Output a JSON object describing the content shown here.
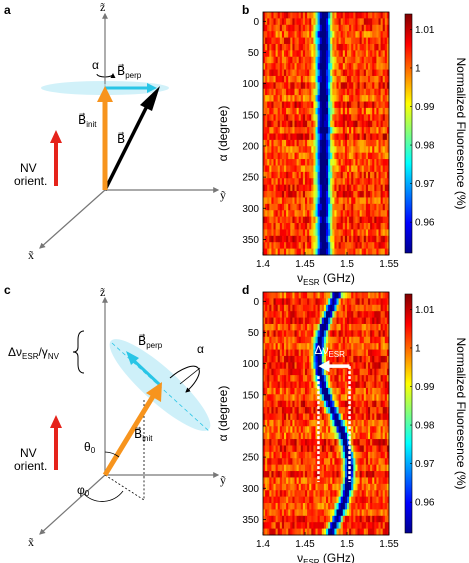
{
  "panels": {
    "a": {
      "label": "a",
      "axis_z": "z̃",
      "axis_y": "ỹ",
      "axis_x": "x̃",
      "alpha": "α",
      "B_perp": "B⃗",
      "B_perp_sub": "perp",
      "B_init": "B⃗",
      "B_init_sub": "init",
      "B": "B⃗",
      "nv_line1": "NV",
      "nv_line2": "orient."
    },
    "c": {
      "label": "c",
      "axis_z": "z̃",
      "axis_y": "ỹ",
      "axis_x": "x̃",
      "alpha": "α",
      "B_perp": "B⃗",
      "B_perp_sub": "perp",
      "B_init": "B⃗",
      "B_init_sub": "init",
      "delta_label": "Δν",
      "delta_sub": "ESR",
      "delta_gamma": "/γ",
      "delta_gamma_sub": "NV",
      "theta": "θ",
      "theta_sub": "0",
      "phi": "φ",
      "phi_sub": "0",
      "nv_line1": "NV",
      "nv_line2": "orient."
    }
  },
  "colors": {
    "orange": "#F7941D",
    "cyan": "#29C5E6",
    "cyan_light": "#BDEBF7",
    "red_nv": "#E5231B",
    "black": "#000000"
  },
  "chart_data": [
    {
      "type": "heatmap",
      "panel_label": "b",
      "xlabel": "ν",
      "xlabel_sub": "ESR",
      "xlabel_unit": " (GHz)",
      "ylabel": "α (degree)",
      "x_ticks": [
        "1.4",
        "1.45",
        "1.5",
        "1.55"
      ],
      "x_tick_values": [
        1.4,
        1.45,
        1.5,
        1.55
      ],
      "y_ticks": [
        "0",
        "50",
        "100",
        "150",
        "200",
        "250",
        "300",
        "350"
      ],
      "y_tick_values": [
        0,
        50,
        100,
        150,
        200,
        250,
        300,
        350
      ],
      "xlim": [
        1.4,
        1.55
      ],
      "ylim": [
        -15,
        375
      ],
      "dip_center_ghz": 1.472,
      "dip_width_ghz": 0.0085,
      "dip_variation": "constant",
      "colorbar_label": "Normalized Fluoresence (%)",
      "colorbar_ticks": [
        "1.01",
        "1",
        "0.99",
        "0.98",
        "0.97",
        "0.96"
      ],
      "colorbar_tick_values": [
        1.01,
        1.0,
        0.99,
        0.98,
        0.97,
        0.96
      ],
      "colorbar_range": [
        0.952,
        1.014
      ],
      "colormap": "jet"
    },
    {
      "type": "heatmap",
      "panel_label": "d",
      "xlabel": "ν",
      "xlabel_sub": "ESR",
      "xlabel_unit": " (GHz)",
      "ylabel": "α (degree)",
      "x_ticks": [
        "1.4",
        "1.45",
        "1.5",
        "1.55"
      ],
      "x_tick_values": [
        1.4,
        1.45,
        1.5,
        1.55
      ],
      "y_ticks": [
        "0",
        "50",
        "100",
        "150",
        "200",
        "250",
        "300",
        "350"
      ],
      "y_tick_values": [
        0,
        50,
        100,
        150,
        200,
        250,
        300,
        350
      ],
      "xlim": [
        1.4,
        1.55
      ],
      "ylim": [
        -15,
        375
      ],
      "dip_center_ghz": 1.4845,
      "dip_amplitude_ghz": 0.0185,
      "dip_phase_deg": 90,
      "dip_width_ghz": 0.0062,
      "dip_variation": "sinusoidal",
      "annotation": "Δν",
      "annotation_sub": "ESR",
      "colorbar_label": "Normalized Fluoresence (%)",
      "colorbar_ticks": [
        "1.01",
        "1",
        "0.99",
        "0.98",
        "0.97",
        "0.96"
      ],
      "colorbar_tick_values": [
        1.01,
        1.0,
        0.99,
        0.98,
        0.97,
        0.96
      ],
      "colorbar_range": [
        0.952,
        1.014
      ],
      "colormap": "jet"
    }
  ]
}
